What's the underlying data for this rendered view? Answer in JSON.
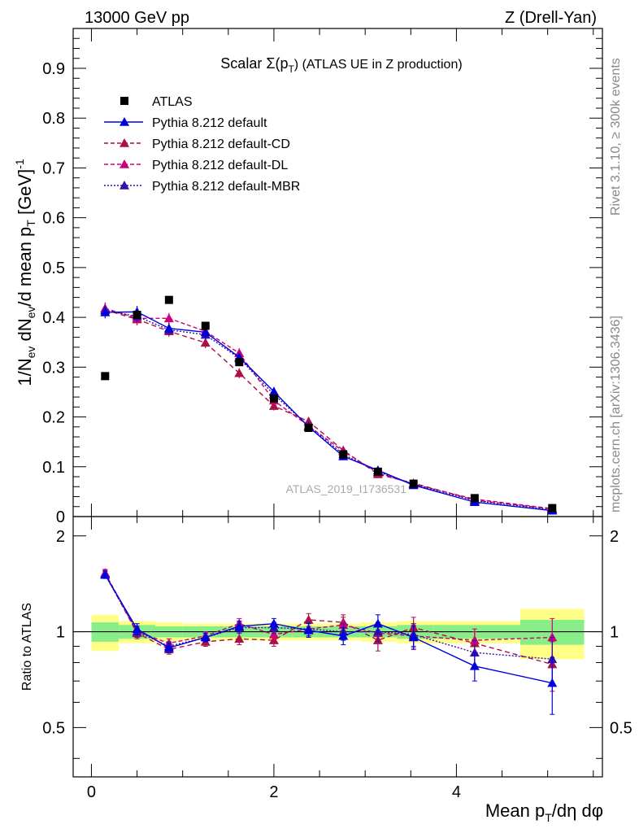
{
  "header": {
    "left": "13000 GeV pp",
    "right": "Z (Drell-Yan)"
  },
  "side_labels": {
    "rivet": "Rivet 3.1.10, ≥ 300k events",
    "mcplots": "mcplots.cern.ch [arXiv:1306.3436]"
  },
  "chart_data": {
    "type": "scatter",
    "title_prefix": "Scalar Σ(p",
    "title_sub": "T",
    "title_suffix": ") (ATLAS UE in Z production)",
    "watermark": "ATLAS_2019_I1736531",
    "ylabel_main": "1/N_ev dN_ev/d mean p_T [GeV]^-1",
    "ylabel_ratio": "Ratio to ATLAS",
    "xlabel": "Mean p_T/dη dφ",
    "xlim": [
      -0.2,
      5.6
    ],
    "ylim_main": [
      0,
      0.98
    ],
    "ylim_ratio": [
      0.35,
      2.3
    ],
    "x_ticks": [
      "0",
      "2",
      "4"
    ],
    "y_ticks_main": [
      "0",
      "0.1",
      "0.2",
      "0.3",
      "0.4",
      "0.5",
      "0.6",
      "0.7",
      "0.8",
      "0.9"
    ],
    "y_ticks_ratio": [
      "0.5",
      "1",
      "2"
    ],
    "x": [
      0.15,
      0.5,
      0.85,
      1.25,
      1.62,
      2.0,
      2.38,
      2.76,
      3.14,
      3.53,
      4.2,
      5.05
    ],
    "bin_edges": [
      0,
      0.3,
      0.7,
      1.0,
      1.45,
      1.85,
      2.2,
      2.55,
      2.95,
      3.35,
      3.75,
      4.7,
      5.4
    ],
    "legend": [
      {
        "label": "ATLAS",
        "color": "#000000",
        "style": "marker"
      },
      {
        "label": "Pythia 8.212 default",
        "color": "#0000dd",
        "style": "solid"
      },
      {
        "label": "Pythia 8.212 default-CD",
        "color": "#aa1144",
        "style": "dashed"
      },
      {
        "label": "Pythia 8.212 default-DL",
        "color": "#cc0077",
        "style": "dashed"
      },
      {
        "label": "Pythia 8.212 default-MBR",
        "color": "#3311aa",
        "style": "dotted"
      }
    ],
    "data": {
      "name": "ATLAS",
      "values": [
        0.282,
        0.405,
        0.435,
        0.383,
        0.31,
        0.237,
        0.178,
        0.125,
        0.09,
        0.066,
        0.037,
        0.017
      ]
    },
    "series": [
      {
        "name": "Pythia 8.212 default",
        "color": "#0000dd",
        "dash": "",
        "values": [
          0.41,
          0.411,
          0.378,
          0.37,
          0.32,
          0.251,
          0.18,
          0.121,
          0.093,
          0.063,
          0.029,
          0.012
        ],
        "errors": [
          0.012,
          0.012,
          0.011,
          0.011,
          0.01,
          0.009,
          0.008,
          0.007,
          0.006,
          0.005,
          0.003,
          0.002
        ],
        "ratio": [
          1.51,
          1.02,
          0.89,
          0.96,
          1.04,
          1.06,
          1.01,
          0.97,
          1.06,
          0.96,
          0.78,
          0.69
        ],
        "ratio_err": [
          0.04,
          0.04,
          0.03,
          0.03,
          0.04,
          0.04,
          0.05,
          0.06,
          0.07,
          0.08,
          0.08,
          0.14
        ]
      },
      {
        "name": "Pythia 8.212 default-CD",
        "color": "#aa1144",
        "dash": "6,4",
        "values": [
          0.415,
          0.396,
          0.372,
          0.349,
          0.288,
          0.222,
          0.191,
          0.133,
          0.085,
          0.067,
          0.033,
          0.015
        ],
        "errors": [
          0.012,
          0.012,
          0.011,
          0.011,
          0.01,
          0.009,
          0.008,
          0.007,
          0.006,
          0.005,
          0.003,
          0.002
        ],
        "ratio": [
          1.52,
          0.99,
          0.88,
          0.93,
          0.95,
          0.94,
          1.09,
          1.07,
          0.94,
          1.03,
          0.92,
          0.79
        ],
        "ratio_err": [
          0.04,
          0.04,
          0.03,
          0.03,
          0.04,
          0.04,
          0.05,
          0.06,
          0.07,
          0.08,
          0.08,
          0.14
        ]
      },
      {
        "name": "Pythia 8.212 default-DL",
        "color": "#cc0077",
        "dash": "5,3",
        "values": [
          0.418,
          0.398,
          0.398,
          0.372,
          0.328,
          0.233,
          0.182,
          0.131,
          0.088,
          0.065,
          0.035,
          0.016
        ],
        "errors": [
          0.012,
          0.012,
          0.011,
          0.011,
          0.01,
          0.009,
          0.008,
          0.007,
          0.006,
          0.005,
          0.003,
          0.002
        ],
        "ratio": [
          1.53,
          1.0,
          0.92,
          0.97,
          1.06,
          0.98,
          1.02,
          1.05,
          0.99,
          0.97,
          0.94,
          0.96
        ],
        "ratio_err": [
          0.04,
          0.04,
          0.03,
          0.03,
          0.04,
          0.04,
          0.05,
          0.06,
          0.07,
          0.08,
          0.08,
          0.14
        ]
      },
      {
        "name": "Pythia 8.212 default-MBR",
        "color": "#3311aa",
        "dash": "2,2",
        "values": [
          0.414,
          0.402,
          0.375,
          0.365,
          0.318,
          0.245,
          0.182,
          0.125,
          0.09,
          0.065,
          0.032,
          0.014
        ],
        "errors": [
          0.012,
          0.012,
          0.011,
          0.011,
          0.01,
          0.009,
          0.008,
          0.007,
          0.006,
          0.005,
          0.003,
          0.002
        ],
        "ratio": [
          1.51,
          1.0,
          0.9,
          0.96,
          1.03,
          1.03,
          1.02,
          1.0,
          1.0,
          0.98,
          0.86,
          0.82
        ],
        "ratio_err": [
          0.04,
          0.04,
          0.03,
          0.03,
          0.04,
          0.04,
          0.05,
          0.06,
          0.07,
          0.08,
          0.08,
          0.14
        ]
      }
    ],
    "band_green": [
      0.07,
      0.05,
      0.04,
      0.04,
      0.04,
      0.04,
      0.04,
      0.04,
      0.04,
      0.05,
      0.05,
      0.09
    ],
    "band_yellow": [
      0.13,
      0.08,
      0.07,
      0.06,
      0.06,
      0.06,
      0.06,
      0.06,
      0.07,
      0.08,
      0.08,
      0.18
    ]
  }
}
